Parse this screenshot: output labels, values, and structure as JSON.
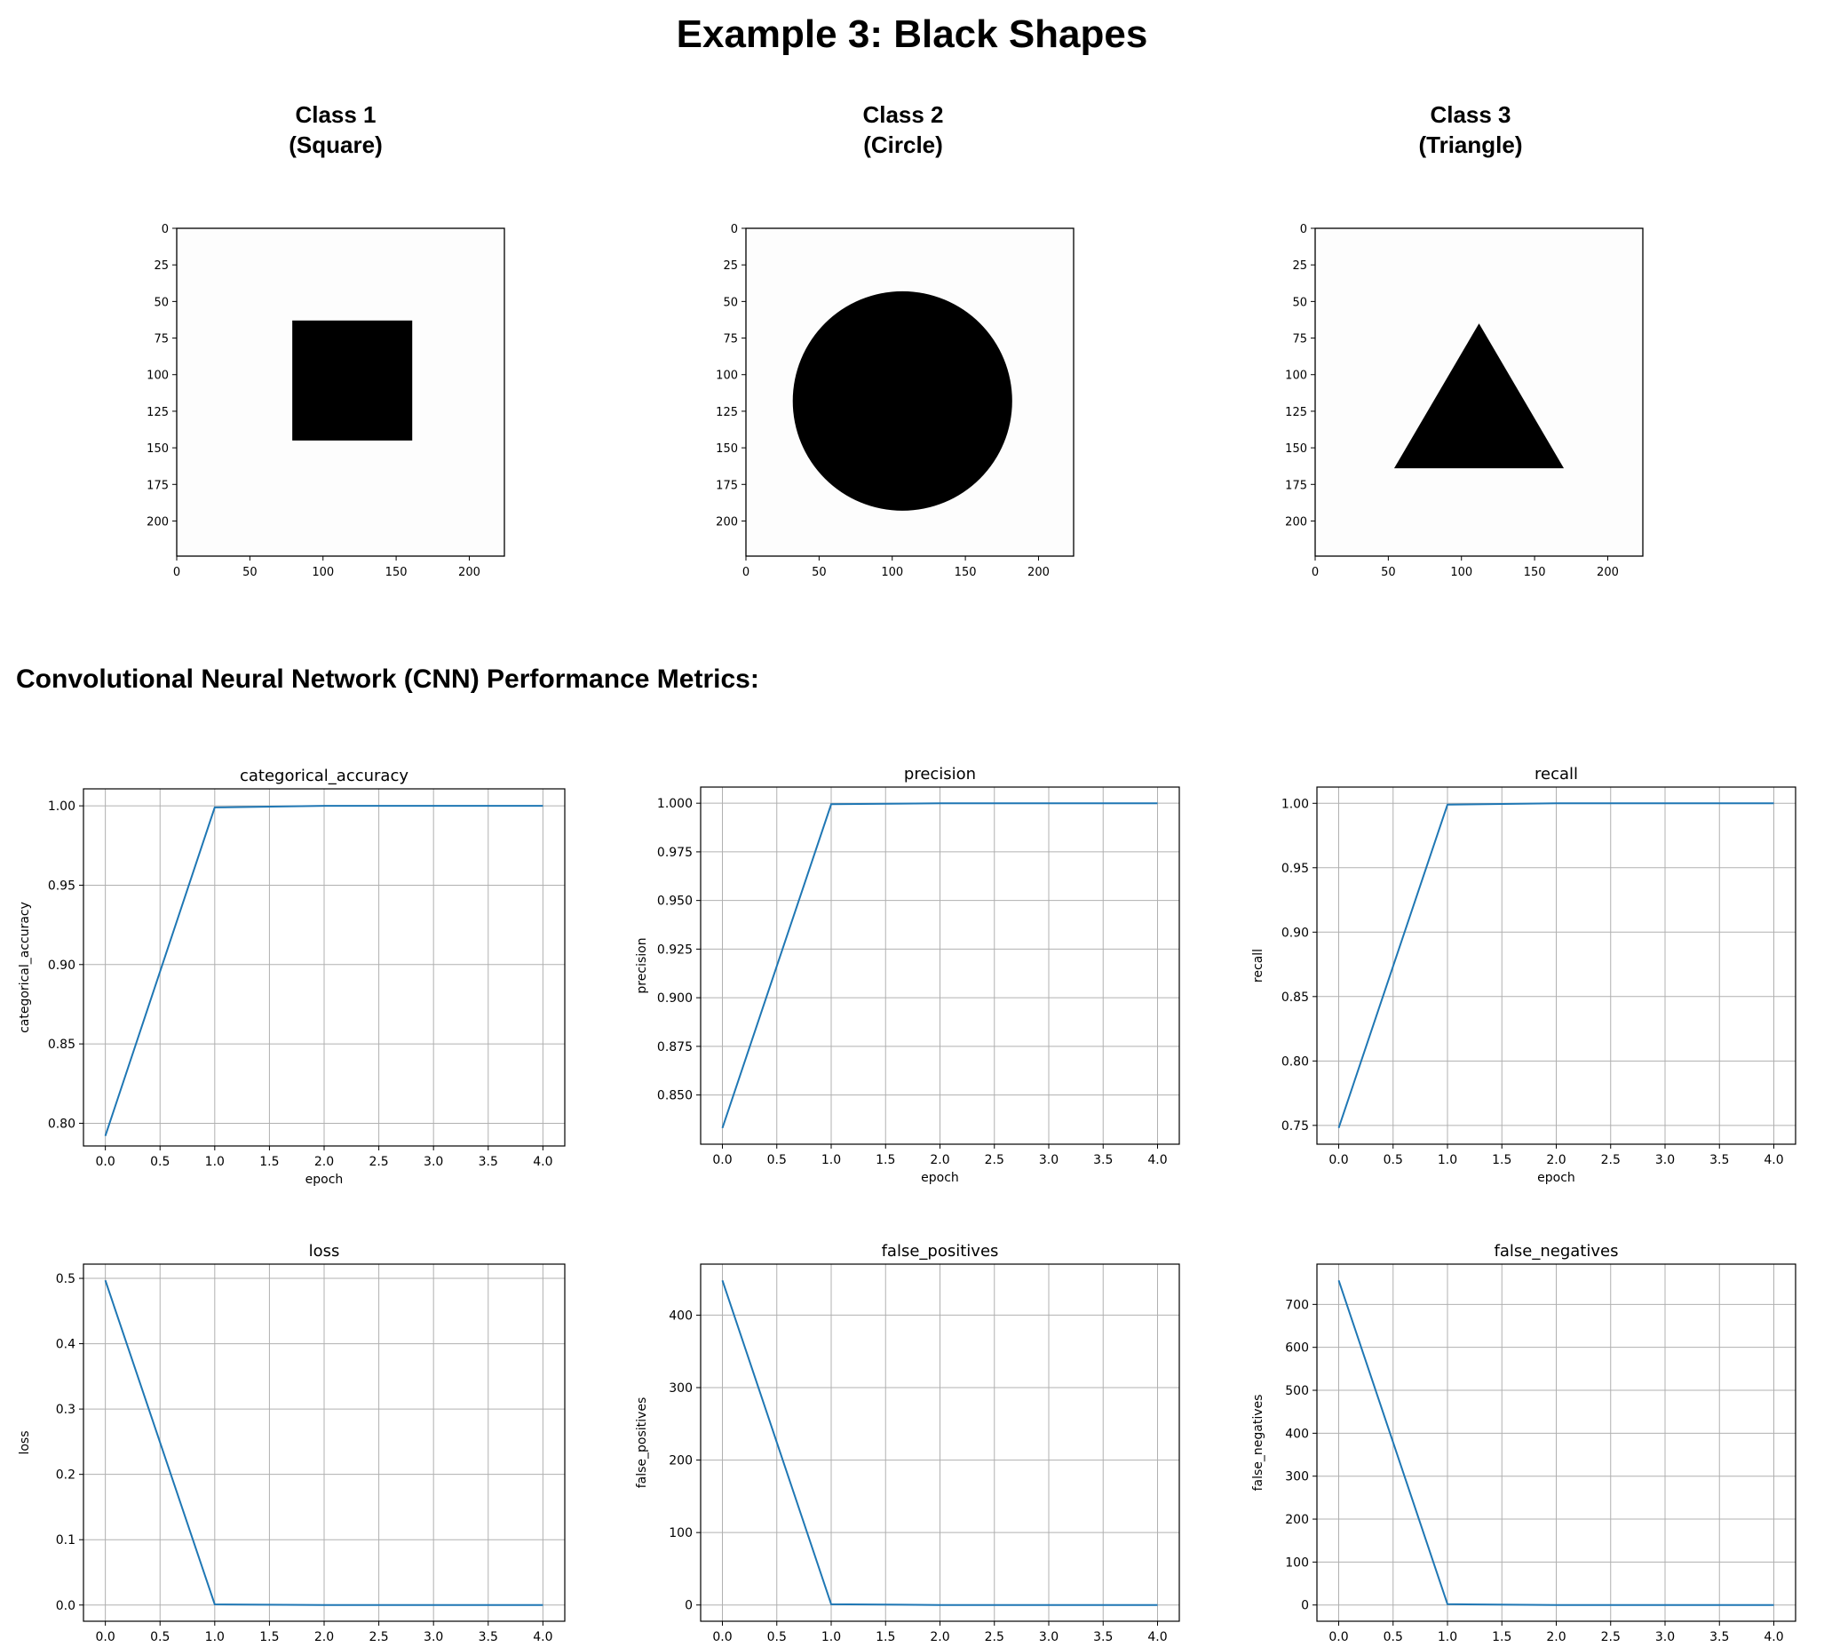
{
  "title": "Example 3: Black Shapes",
  "classes": [
    {
      "line1": "Class 1",
      "line2": "(Square)",
      "shape": "square",
      "tick_x": [
        "0",
        "50",
        "100",
        "150",
        "200"
      ],
      "tick_y": [
        "0",
        "25",
        "50",
        "75",
        "100",
        "125",
        "150",
        "175",
        "200"
      ]
    },
    {
      "line1": "Class 2",
      "line2": "(Circle)",
      "shape": "circle",
      "tick_x": [
        "0",
        "50",
        "100",
        "150",
        "200"
      ],
      "tick_y": [
        "0",
        "25",
        "50",
        "75",
        "100",
        "125",
        "150",
        "175",
        "200"
      ]
    },
    {
      "line1": "Class 3",
      "line2": "(Triangle)",
      "shape": "triangle",
      "tick_x": [
        "0",
        "50",
        "100",
        "150",
        "200"
      ],
      "tick_y": [
        "0",
        "25",
        "50",
        "75",
        "100",
        "125",
        "150",
        "175",
        "200"
      ]
    }
  ],
  "section_title": "Convolutional Neural Network (CNN) Performance Metrics:",
  "colors": {
    "line": "#1f77b4",
    "grid": "#b0b0b0",
    "shape": "#000000"
  },
  "chart_data": [
    {
      "type": "line",
      "title": "categorical_accuracy",
      "xlabel": "epoch",
      "ylabel": "categorical_accuracy",
      "x": [
        0,
        1,
        2,
        3,
        4
      ],
      "values": [
        0.792,
        0.999,
        1.0,
        1.0,
        1.0
      ],
      "xlim": [
        -0.2,
        4.2
      ],
      "ylim": [
        0.7857,
        1.0107
      ],
      "xticks": [
        "0.0",
        "0.5",
        "1.0",
        "1.5",
        "2.0",
        "2.5",
        "3.0",
        "3.5",
        "4.0"
      ],
      "yticks": [
        "0.80",
        "0.85",
        "0.90",
        "0.95",
        "1.00"
      ],
      "grid": true
    },
    {
      "type": "line",
      "title": "precision",
      "xlabel": "epoch",
      "ylabel": "precision",
      "x": [
        0,
        1,
        2,
        3,
        4
      ],
      "values": [
        0.833,
        0.9995,
        1.0,
        1.0,
        1.0
      ],
      "xlim": [
        -0.2,
        4.2
      ],
      "ylim": [
        0.8247,
        1.0083
      ],
      "xticks": [
        "0.0",
        "0.5",
        "1.0",
        "1.5",
        "2.0",
        "2.5",
        "3.0",
        "3.5",
        "4.0"
      ],
      "yticks": [
        "0.850",
        "0.875",
        "0.900",
        "0.925",
        "0.950",
        "0.975",
        "1.000"
      ],
      "grid": true
    },
    {
      "type": "line",
      "title": "recall",
      "xlabel": "epoch",
      "ylabel": "recall",
      "x": [
        0,
        1,
        2,
        3,
        4
      ],
      "values": [
        0.748,
        0.999,
        1.0,
        1.0,
        1.0
      ],
      "xlim": [
        -0.2,
        4.2
      ],
      "ylim": [
        0.7354,
        1.0126
      ],
      "xticks": [
        "0.0",
        "0.5",
        "1.0",
        "1.5",
        "2.0",
        "2.5",
        "3.0",
        "3.5",
        "4.0"
      ],
      "yticks": [
        "0.75",
        "0.80",
        "0.85",
        "0.90",
        "0.95",
        "1.00"
      ],
      "grid": true
    },
    {
      "type": "line",
      "title": "loss",
      "xlabel": "epoch",
      "ylabel": "loss",
      "x": [
        0,
        1,
        2,
        3,
        4
      ],
      "values": [
        0.497,
        0.001,
        0.0,
        0.0,
        0.0
      ],
      "xlim": [
        -0.2,
        4.2
      ],
      "ylim": [
        -0.0248,
        0.5218
      ],
      "xticks": [
        "0.0",
        "0.5",
        "1.0",
        "1.5",
        "2.0",
        "2.5",
        "3.0",
        "3.5",
        "4.0"
      ],
      "yticks": [
        "0.0",
        "0.1",
        "0.2",
        "0.3",
        "0.4",
        "0.5"
      ],
      "grid": true
    },
    {
      "type": "line",
      "title": "false_positives",
      "xlabel": "epoch",
      "ylabel": "false_positives",
      "x": [
        0,
        1,
        2,
        3,
        4
      ],
      "values": [
        448,
        1,
        0,
        0,
        0
      ],
      "xlim": [
        -0.2,
        4.2
      ],
      "ylim": [
        -22.4,
        470.4
      ],
      "xticks": [
        "0.0",
        "0.5",
        "1.0",
        "1.5",
        "2.0",
        "2.5",
        "3.0",
        "3.5",
        "4.0"
      ],
      "yticks": [
        "0",
        "100",
        "200",
        "300",
        "400"
      ],
      "grid": true
    },
    {
      "type": "line",
      "title": "false_negatives",
      "xlabel": "epoch",
      "ylabel": "false_negatives",
      "x": [
        0,
        1,
        2,
        3,
        4
      ],
      "values": [
        756,
        2,
        0,
        0,
        0
      ],
      "xlim": [
        -0.2,
        4.2
      ],
      "ylim": [
        -37.8,
        793.8
      ],
      "xticks": [
        "0.0",
        "0.5",
        "1.0",
        "1.5",
        "2.0",
        "2.5",
        "3.0",
        "3.5",
        "4.0"
      ],
      "yticks": [
        "0",
        "100",
        "200",
        "300",
        "400",
        "500",
        "600",
        "700"
      ],
      "grid": true
    }
  ]
}
